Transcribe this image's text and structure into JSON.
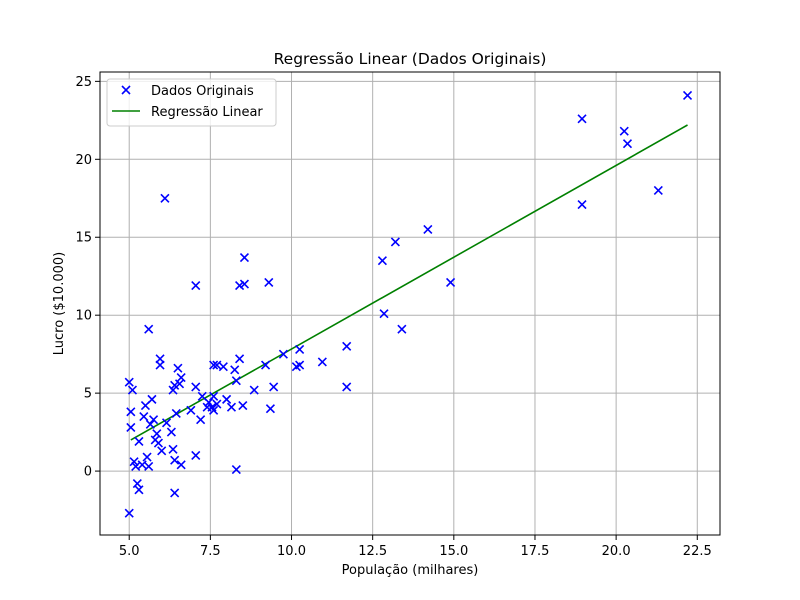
{
  "colors": {
    "points": "#0000ff",
    "line": "#008000",
    "grid": "#b0b0b0",
    "axes": "#000000",
    "background": "#ffffff"
  },
  "chart_data": {
    "type": "scatter",
    "title": "Regressão Linear (Dados Originais)",
    "xlabel": "População (milhares)",
    "ylabel": "Lucro ($10.000)",
    "xlim": [
      4.1,
      23.2
    ],
    "ylim": [
      -4.1,
      25.6
    ],
    "xticks": [
      5.0,
      7.5,
      10.0,
      12.5,
      15.0,
      17.5,
      20.0,
      22.5
    ],
    "xtick_labels": [
      "5.0",
      "7.5",
      "10.0",
      "12.5",
      "15.0",
      "17.5",
      "20.0",
      "22.5"
    ],
    "yticks": [
      0,
      5,
      10,
      15,
      20,
      25
    ],
    "ytick_labels": [
      "0",
      "5",
      "10",
      "15",
      "20",
      "25"
    ],
    "grid": true,
    "legend": {
      "position": "top-left",
      "entries": [
        "Dados Originais",
        "Regressão Linear"
      ]
    },
    "series": [
      {
        "name": "Dados Originais",
        "kind": "scatter",
        "marker": "x",
        "points": [
          [
            5.0,
            5.7
          ],
          [
            5.1,
            5.2
          ],
          [
            5.05,
            3.8
          ],
          [
            5.05,
            2.8
          ],
          [
            5.0,
            -2.7
          ],
          [
            5.15,
            0.6
          ],
          [
            5.2,
            0.3
          ],
          [
            5.3,
            1.9
          ],
          [
            5.25,
            -0.8
          ],
          [
            5.3,
            -1.2
          ],
          [
            5.4,
            0.4
          ],
          [
            5.45,
            3.5
          ],
          [
            5.5,
            4.2
          ],
          [
            5.55,
            0.9
          ],
          [
            5.6,
            0.3
          ],
          [
            5.6,
            9.1
          ],
          [
            5.65,
            3.0
          ],
          [
            5.7,
            4.6
          ],
          [
            5.75,
            3.3
          ],
          [
            5.8,
            2.0
          ],
          [
            5.85,
            2.4
          ],
          [
            5.9,
            1.8
          ],
          [
            5.95,
            7.2
          ],
          [
            5.95,
            6.8
          ],
          [
            6.0,
            1.3
          ],
          [
            6.1,
            17.5
          ],
          [
            6.15,
            3.1
          ],
          [
            6.3,
            2.5
          ],
          [
            6.35,
            1.4
          ],
          [
            6.4,
            5.5
          ],
          [
            6.35,
            5.2
          ],
          [
            6.4,
            0.7
          ],
          [
            6.4,
            -1.4
          ],
          [
            6.45,
            3.7
          ],
          [
            6.5,
            6.6
          ],
          [
            6.55,
            5.6
          ],
          [
            6.6,
            0.4
          ],
          [
            6.6,
            6.0
          ],
          [
            6.9,
            3.9
          ],
          [
            7.05,
            5.4
          ],
          [
            7.05,
            1.0
          ],
          [
            7.05,
            11.9
          ],
          [
            7.2,
            3.3
          ],
          [
            7.25,
            4.8
          ],
          [
            7.4,
            4.1
          ],
          [
            7.45,
            4.4
          ],
          [
            7.55,
            4.1
          ],
          [
            7.6,
            6.8
          ],
          [
            7.6,
            3.9
          ],
          [
            7.7,
            4.3
          ],
          [
            7.7,
            6.8
          ],
          [
            7.6,
            4.8
          ],
          [
            7.9,
            6.7
          ],
          [
            8.0,
            4.6
          ],
          [
            8.15,
            4.1
          ],
          [
            8.3,
            0.1
          ],
          [
            8.25,
            6.5
          ],
          [
            8.3,
            5.8
          ],
          [
            8.4,
            7.2
          ],
          [
            8.4,
            11.9
          ],
          [
            8.55,
            12.0
          ],
          [
            8.55,
            13.7
          ],
          [
            8.5,
            4.2
          ],
          [
            8.85,
            5.2
          ],
          [
            9.2,
            6.8
          ],
          [
            9.3,
            12.1
          ],
          [
            9.35,
            4.0
          ],
          [
            9.45,
            5.4
          ],
          [
            9.75,
            7.5
          ],
          [
            10.15,
            6.7
          ],
          [
            10.25,
            7.8
          ],
          [
            10.25,
            6.8
          ],
          [
            10.95,
            7.0
          ],
          [
            11.7,
            8.0
          ],
          [
            11.7,
            5.4
          ],
          [
            12.8,
            13.5
          ],
          [
            12.85,
            10.1
          ],
          [
            13.2,
            14.7
          ],
          [
            13.4,
            9.1
          ],
          [
            14.2,
            15.5
          ],
          [
            14.9,
            12.1
          ],
          [
            18.95,
            22.6
          ],
          [
            18.95,
            17.1
          ],
          [
            20.25,
            21.8
          ],
          [
            20.35,
            21.0
          ],
          [
            21.3,
            18.0
          ],
          [
            22.2,
            24.1
          ]
        ]
      },
      {
        "name": "Regressão Linear",
        "kind": "line",
        "points": [
          [
            5.05,
            2.0
          ],
          [
            22.2,
            22.2
          ]
        ]
      }
    ]
  }
}
